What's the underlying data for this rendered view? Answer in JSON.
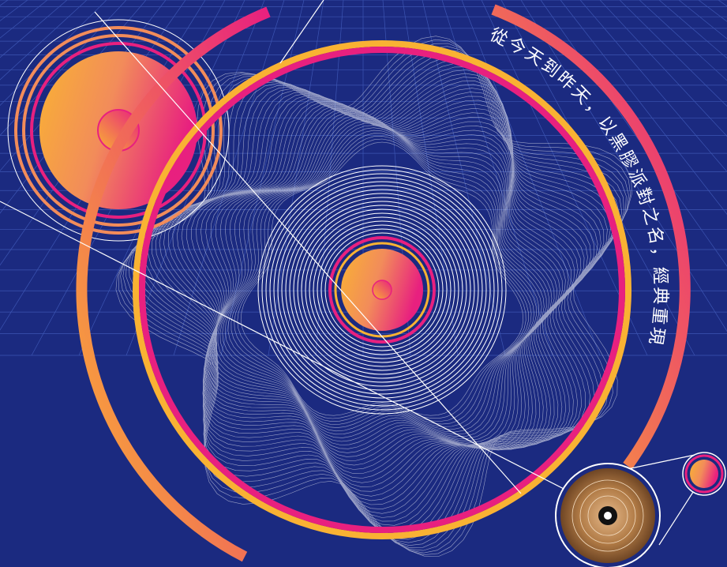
{
  "poster": {
    "caption": "從今天到昨天，以黑膠派對之名，經典重現"
  }
}
